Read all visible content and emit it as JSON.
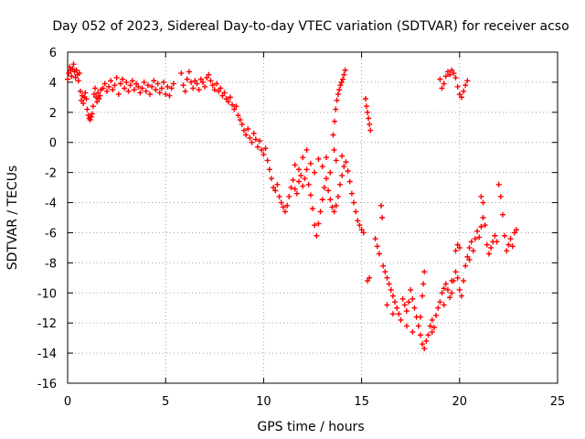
{
  "chart_data": {
    "type": "scatter",
    "title": "Day 052 of 2023, Sidereal Day-to-day VTEC variation (SDTVAR) for receiver acso",
    "xlabel": "GPS time / hours",
    "ylabel": "SDTVAR / TECUs",
    "xlim": [
      0,
      25
    ],
    "ylim": [
      -16,
      6
    ],
    "xticks": [
      0,
      5,
      10,
      15,
      20,
      25
    ],
    "yticks": [
      -16,
      -14,
      -12,
      -10,
      -8,
      -6,
      -4,
      -2,
      0,
      2,
      4,
      6
    ],
    "grid": true,
    "marker": "+",
    "color": "#ff0000",
    "series": [
      {
        "name": "SDTVAR",
        "points": [
          [
            0.0,
            4.2
          ],
          [
            0.05,
            4.6
          ],
          [
            0.1,
            5.0
          ],
          [
            0.15,
            4.8
          ],
          [
            0.2,
            4.4
          ],
          [
            0.25,
            4.9
          ],
          [
            0.3,
            5.2
          ],
          [
            0.35,
            4.7
          ],
          [
            0.4,
            4.3
          ],
          [
            0.45,
            4.8
          ],
          [
            0.5,
            4.5
          ],
          [
            0.55,
            4.1
          ],
          [
            0.6,
            4.6
          ],
          [
            0.65,
            3.4
          ],
          [
            0.7,
            2.8
          ],
          [
            0.75,
            3.1
          ],
          [
            0.8,
            2.6
          ],
          [
            0.85,
            3.0
          ],
          [
            0.9,
            3.3
          ],
          [
            0.95,
            2.9
          ],
          [
            1.0,
            2.2
          ],
          [
            1.05,
            1.8
          ],
          [
            1.1,
            1.6
          ],
          [
            1.15,
            1.5
          ],
          [
            1.2,
            1.7
          ],
          [
            1.25,
            1.9
          ],
          [
            1.3,
            2.4
          ],
          [
            1.35,
            3.2
          ],
          [
            1.4,
            3.6
          ],
          [
            1.45,
            3.0
          ],
          [
            1.5,
            2.7
          ],
          [
            1.55,
            3.3
          ],
          [
            1.6,
            2.9
          ],
          [
            1.65,
            3.1
          ],
          [
            1.7,
            3.5
          ],
          [
            1.8,
            3.6
          ],
          [
            1.9,
            3.9
          ],
          [
            2.0,
            3.4
          ],
          [
            2.1,
            3.7
          ],
          [
            2.2,
            4.1
          ],
          [
            2.3,
            3.5
          ],
          [
            2.4,
            3.8
          ],
          [
            2.5,
            4.3
          ],
          [
            2.6,
            3.2
          ],
          [
            2.7,
            3.9
          ],
          [
            2.8,
            4.2
          ],
          [
            2.9,
            3.6
          ],
          [
            3.0,
            4.0
          ],
          [
            3.1,
            3.4
          ],
          [
            3.2,
            3.8
          ],
          [
            3.3,
            4.1
          ],
          [
            3.4,
            3.5
          ],
          [
            3.5,
            3.9
          ],
          [
            3.6,
            3.7
          ],
          [
            3.7,
            3.3
          ],
          [
            3.8,
            3.6
          ],
          [
            3.9,
            4.0
          ],
          [
            4.0,
            3.4
          ],
          [
            4.1,
            3.8
          ],
          [
            4.2,
            3.2
          ],
          [
            4.3,
            3.7
          ],
          [
            4.4,
            4.1
          ],
          [
            4.5,
            3.5
          ],
          [
            4.6,
            3.9
          ],
          [
            4.7,
            3.3
          ],
          [
            4.8,
            3.6
          ],
          [
            4.9,
            4.0
          ],
          [
            5.0,
            3.2
          ],
          [
            5.1,
            3.7
          ],
          [
            5.2,
            3.1
          ],
          [
            5.3,
            3.6
          ],
          [
            5.4,
            3.9
          ],
          [
            5.8,
            4.6
          ],
          [
            5.9,
            3.8
          ],
          [
            6.0,
            3.4
          ],
          [
            6.1,
            4.2
          ],
          [
            6.2,
            4.7
          ],
          [
            6.3,
            4.0
          ],
          [
            6.4,
            3.6
          ],
          [
            6.5,
            4.1
          ],
          [
            6.6,
            3.9
          ],
          [
            6.7,
            3.5
          ],
          [
            6.8,
            4.2
          ],
          [
            6.9,
            4.0
          ],
          [
            7.0,
            3.7
          ],
          [
            7.1,
            4.3
          ],
          [
            7.2,
            4.5
          ],
          [
            7.3,
            4.1
          ],
          [
            7.4,
            3.8
          ],
          [
            7.5,
            3.5
          ],
          [
            7.6,
            3.9
          ],
          [
            7.7,
            3.4
          ],
          [
            7.8,
            3.6
          ],
          [
            7.9,
            3.1
          ],
          [
            8.0,
            3.3
          ],
          [
            8.1,
            2.9
          ],
          [
            8.2,
            2.7
          ],
          [
            8.3,
            3.0
          ],
          [
            8.4,
            2.5
          ],
          [
            8.5,
            2.2
          ],
          [
            8.6,
            2.4
          ],
          [
            8.7,
            1.8
          ],
          [
            8.8,
            1.5
          ],
          [
            8.9,
            1.2
          ],
          [
            9.0,
            0.8
          ],
          [
            9.1,
            0.5
          ],
          [
            9.2,
            0.9
          ],
          [
            9.3,
            0.3
          ],
          [
            9.4,
            0.0
          ],
          [
            9.5,
            0.6
          ],
          [
            9.6,
            0.2
          ],
          [
            9.7,
            -0.3
          ],
          [
            9.8,
            0.1
          ],
          [
            9.9,
            -0.5
          ],
          [
            10.0,
            -0.8
          ],
          [
            10.1,
            -0.4
          ],
          [
            10.2,
            -1.2
          ],
          [
            10.3,
            -1.8
          ],
          [
            10.4,
            -2.4
          ],
          [
            10.5,
            -3.0
          ],
          [
            10.6,
            -3.2
          ],
          [
            10.7,
            -2.8
          ],
          [
            10.8,
            -3.6
          ],
          [
            10.9,
            -4.0
          ],
          [
            11.0,
            -4.3
          ],
          [
            11.1,
            -4.6
          ],
          [
            11.2,
            -4.2
          ],
          [
            11.3,
            -3.6
          ],
          [
            11.4,
            -3.0
          ],
          [
            11.5,
            -2.5
          ],
          [
            11.6,
            -3.1
          ],
          [
            11.7,
            -3.4
          ],
          [
            11.8,
            -2.6
          ],
          [
            11.9,
            -2.2
          ],
          [
            12.0,
            -2.9
          ],
          [
            12.1,
            -2.4
          ],
          [
            12.2,
            -1.8
          ],
          [
            12.3,
            -2.8
          ],
          [
            12.4,
            -3.5
          ],
          [
            12.5,
            -4.4
          ],
          [
            12.6,
            -5.5
          ],
          [
            12.7,
            -6.2
          ],
          [
            12.8,
            -5.4
          ],
          [
            12.9,
            -4.6
          ],
          [
            13.0,
            -3.8
          ],
          [
            13.1,
            -3.0
          ],
          [
            13.2,
            -2.4
          ],
          [
            13.3,
            -3.2
          ],
          [
            13.4,
            -3.8
          ],
          [
            13.5,
            -4.3
          ],
          [
            13.6,
            -4.6
          ],
          [
            13.7,
            -4.2
          ],
          [
            13.8,
            -3.6
          ],
          [
            13.9,
            -2.8
          ],
          [
            14.0,
            -2.2
          ],
          [
            14.1,
            -1.6
          ],
          [
            14.2,
            -1.3
          ],
          [
            14.3,
            -1.9
          ],
          [
            14.4,
            -2.6
          ],
          [
            14.5,
            -3.4
          ],
          [
            14.6,
            -4.0
          ],
          [
            14.7,
            -4.6
          ],
          [
            14.8,
            -5.2
          ],
          [
            14.9,
            -5.5
          ],
          [
            15.0,
            -5.8
          ],
          [
            15.1,
            -6.0
          ],
          [
            11.6,
            -1.5
          ],
          [
            11.8,
            -1.8
          ],
          [
            12.0,
            -1.0
          ],
          [
            12.2,
            -0.5
          ],
          [
            12.4,
            -1.4
          ],
          [
            12.6,
            -2.0
          ],
          [
            12.8,
            -1.1
          ],
          [
            13.0,
            -1.6
          ],
          [
            13.2,
            -1.0
          ],
          [
            13.4,
            -2.0
          ],
          [
            13.55,
            0.5
          ],
          [
            13.62,
            1.4
          ],
          [
            13.68,
            2.2
          ],
          [
            13.74,
            2.8
          ],
          [
            13.8,
            3.2
          ],
          [
            13.86,
            3.5
          ],
          [
            13.92,
            3.8
          ],
          [
            13.98,
            4.0
          ],
          [
            14.04,
            4.2
          ],
          [
            14.1,
            4.5
          ],
          [
            14.16,
            4.8
          ],
          [
            13.7,
            -1.2
          ],
          [
            13.6,
            -0.5
          ],
          [
            14.0,
            -0.9
          ],
          [
            15.2,
            2.9
          ],
          [
            15.25,
            2.4
          ],
          [
            15.3,
            2.0
          ],
          [
            15.35,
            1.6
          ],
          [
            15.4,
            1.2
          ],
          [
            15.45,
            0.8
          ],
          [
            15.3,
            -9.2
          ],
          [
            15.4,
            -9.0
          ],
          [
            15.7,
            -6.4
          ],
          [
            15.8,
            -6.9
          ],
          [
            15.9,
            -7.4
          ],
          [
            16.0,
            -4.2
          ],
          [
            16.05,
            -5.0
          ],
          [
            16.1,
            -8.2
          ],
          [
            16.2,
            -8.6
          ],
          [
            16.3,
            -9.0
          ],
          [
            16.4,
            -9.4
          ],
          [
            16.5,
            -9.8
          ],
          [
            16.6,
            -10.2
          ],
          [
            16.7,
            -10.6
          ],
          [
            16.8,
            -11.0
          ],
          [
            16.9,
            -11.4
          ],
          [
            17.0,
            -11.8
          ],
          [
            17.1,
            -10.4
          ],
          [
            17.2,
            -10.8
          ],
          [
            17.3,
            -11.2
          ],
          [
            17.4,
            -10.6
          ],
          [
            17.5,
            -9.8
          ],
          [
            17.6,
            -10.4
          ],
          [
            17.7,
            -11.0
          ],
          [
            17.8,
            -11.6
          ],
          [
            17.9,
            -12.2
          ],
          [
            18.0,
            -12.8
          ],
          [
            18.1,
            -13.4
          ],
          [
            18.2,
            -13.7
          ],
          [
            18.3,
            -13.2
          ],
          [
            18.4,
            -12.8
          ],
          [
            18.5,
            -12.2
          ],
          [
            18.6,
            -11.8
          ],
          [
            18.7,
            -12.3
          ],
          [
            18.8,
            -11.5
          ],
          [
            18.9,
            -11.0
          ],
          [
            19.0,
            -10.6
          ],
          [
            19.1,
            -10.0
          ],
          [
            19.2,
            -9.7
          ],
          [
            19.3,
            -9.4
          ],
          [
            19.4,
            -9.8
          ],
          [
            19.5,
            -10.3
          ],
          [
            19.6,
            -10.0
          ],
          [
            19.7,
            -9.2
          ],
          [
            19.8,
            -8.6
          ],
          [
            19.9,
            -9.0
          ],
          [
            20.0,
            -9.8
          ],
          [
            20.1,
            -10.2
          ],
          [
            20.2,
            -9.2
          ],
          [
            20.3,
            -8.2
          ],
          [
            20.4,
            -7.6
          ],
          [
            20.5,
            -7.0
          ],
          [
            20.6,
            -6.6
          ],
          [
            20.7,
            -7.2
          ],
          [
            20.8,
            -6.4
          ],
          [
            20.9,
            -5.9
          ],
          [
            21.0,
            -6.3
          ],
          [
            21.1,
            -5.6
          ],
          [
            21.2,
            -5.0
          ],
          [
            21.3,
            -5.5
          ],
          [
            21.4,
            -6.8
          ],
          [
            21.5,
            -7.4
          ],
          [
            21.6,
            -7.0
          ],
          [
            21.7,
            -6.6
          ],
          [
            21.8,
            -6.2
          ],
          [
            21.9,
            -6.6
          ],
          [
            22.0,
            -2.8
          ],
          [
            22.1,
            -3.6
          ],
          [
            22.2,
            -4.8
          ],
          [
            22.3,
            -6.2
          ],
          [
            22.4,
            -7.2
          ],
          [
            22.5,
            -6.8
          ],
          [
            22.6,
            -6.4
          ],
          [
            22.7,
            -6.9
          ],
          [
            22.8,
            -6.0
          ],
          [
            22.9,
            -5.8
          ],
          [
            21.2,
            -4.0
          ],
          [
            21.1,
            -3.6
          ],
          [
            20.5,
            -7.8
          ],
          [
            16.3,
            -10.8
          ],
          [
            16.6,
            -11.4
          ],
          [
            17.3,
            -12.2
          ],
          [
            17.6,
            -12.6
          ],
          [
            18.0,
            -11.6
          ],
          [
            18.2,
            -8.6
          ],
          [
            18.15,
            -9.4
          ],
          [
            18.1,
            -10.2
          ],
          [
            18.6,
            -12.6
          ],
          [
            19.2,
            -10.8
          ],
          [
            19.6,
            -9.2
          ],
          [
            20.0,
            -7.0
          ],
          [
            19.9,
            -6.8
          ],
          [
            19.8,
            -7.2
          ],
          [
            19.0,
            4.2
          ],
          [
            19.1,
            3.6
          ],
          [
            19.2,
            3.9
          ],
          [
            19.3,
            4.4
          ],
          [
            19.4,
            4.7
          ],
          [
            19.5,
            4.5
          ],
          [
            19.6,
            4.8
          ],
          [
            19.7,
            4.6
          ],
          [
            19.8,
            4.3
          ],
          [
            19.9,
            3.7
          ],
          [
            20.0,
            3.2
          ],
          [
            20.1,
            3.0
          ],
          [
            20.2,
            3.4
          ],
          [
            20.3,
            3.8
          ],
          [
            20.4,
            4.1
          ]
        ]
      }
    ]
  }
}
